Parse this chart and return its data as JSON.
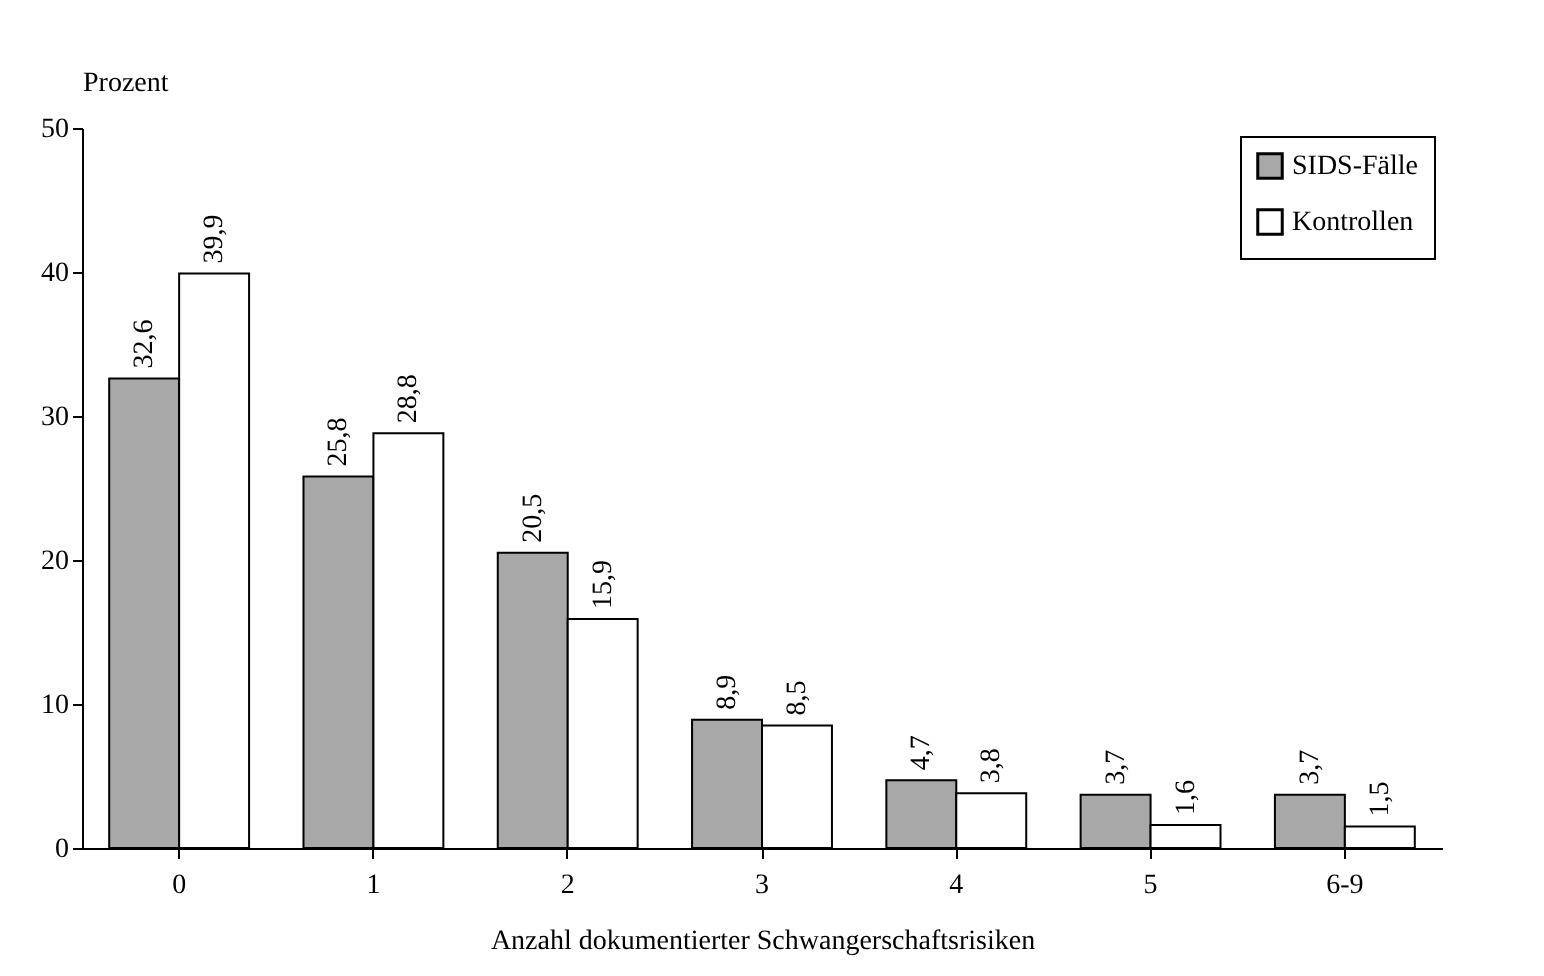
{
  "chart_data": {
    "type": "bar",
    "xlabel": "Anzahl dokumentierter Schwangerschaftsrisiken",
    "ylabel": "Prozent",
    "categories": [
      "0",
      "1",
      "2",
      "3",
      "4",
      "5",
      "6-9"
    ],
    "series": [
      {
        "name": "SIDS-Fälle",
        "color": "#a8a8a8",
        "values": [
          32.6,
          25.8,
          20.5,
          8.9,
          4.7,
          3.7,
          3.7
        ],
        "value_labels": [
          "32,6",
          "25,8",
          "20,5",
          "8,9",
          "4,7",
          "3,7",
          "3,7"
        ]
      },
      {
        "name": "Kontrollen",
        "color": "#ffffff",
        "values": [
          39.9,
          28.8,
          15.9,
          8.5,
          3.8,
          1.6,
          1.5
        ],
        "value_labels": [
          "39,9",
          "28,8",
          "15,9",
          "8,5",
          "3,8",
          "1,6",
          "1,5"
        ]
      }
    ],
    "ylim": [
      0,
      50
    ],
    "yticks": [
      0,
      10,
      20,
      30,
      40,
      50
    ],
    "grid": false,
    "legend": "top right"
  }
}
